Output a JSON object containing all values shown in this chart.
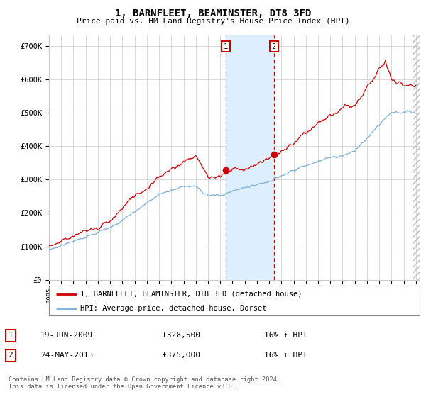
{
  "title": "1, BARNFLEET, BEAMINSTER, DT8 3FD",
  "subtitle": "Price paid vs. HM Land Registry's House Price Index (HPI)",
  "xlim_start": 1995.0,
  "xlim_end": 2025.3,
  "ylim": [
    0,
    730000
  ],
  "yticks": [
    0,
    100000,
    200000,
    300000,
    400000,
    500000,
    600000,
    700000
  ],
  "ytick_labels": [
    "£0",
    "£100K",
    "£200K",
    "£300K",
    "£400K",
    "£500K",
    "£600K",
    "£700K"
  ],
  "sale1_date": 2009.46,
  "sale1_price": 328500,
  "sale1_label": "1",
  "sale2_date": 2013.39,
  "sale2_price": 375000,
  "sale2_label": "2",
  "sale_color": "#cc0000",
  "sale1_vline_color": "#888888",
  "sale2_vline_color": "#cc0000",
  "hpi_color": "#7aafd4",
  "shading_color": "#ddeeff",
  "grid_color": "#cccccc",
  "background_color": "#ffffff",
  "legend_line1": "1, BARNFLEET, BEAMINSTER, DT8 3FD (detached house)",
  "legend_line2": "HPI: Average price, detached house, Dorset",
  "table_row1": [
    "1",
    "19-JUN-2009",
    "£328,500",
    "16% ↑ HPI"
  ],
  "table_row2": [
    "2",
    "24-MAY-2013",
    "£375,000",
    "16% ↑ HPI"
  ],
  "footnote": "Contains HM Land Registry data © Crown copyright and database right 2024.\nThis data is licensed under the Open Government Licence v3.0.",
  "xtick_years": [
    1995,
    1996,
    1997,
    1998,
    1999,
    2000,
    2001,
    2002,
    2003,
    2004,
    2005,
    2006,
    2007,
    2008,
    2009,
    2010,
    2011,
    2012,
    2013,
    2014,
    2015,
    2016,
    2017,
    2018,
    2019,
    2020,
    2021,
    2022,
    2023,
    2024,
    2025
  ]
}
